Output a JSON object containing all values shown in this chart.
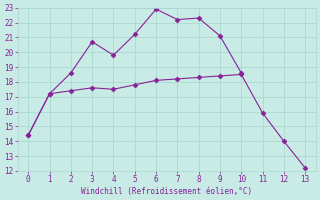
{
  "line1_x": [
    0,
    1,
    2,
    3,
    4,
    5,
    6,
    7,
    8,
    9,
    10
  ],
  "line1_y": [
    14.4,
    17.2,
    18.6,
    20.7,
    19.8,
    21.2,
    22.9,
    22.2,
    22.3,
    21.1,
    18.6
  ],
  "line2_x": [
    0,
    1,
    2,
    3,
    4,
    5,
    6,
    7,
    8,
    9,
    10,
    11,
    12,
    13
  ],
  "line2_y": [
    14.4,
    17.2,
    17.4,
    17.6,
    17.5,
    17.8,
    18.1,
    18.2,
    18.3,
    18.4,
    18.5,
    15.9,
    14.0,
    12.2
  ],
  "line_color": "#882299",
  "bg_color": "#c8ebe6",
  "grid_color": "#aad8d0",
  "xlabel": "Windchill (Refroidissement éolien,°C)",
  "xlabel_color": "#882299",
  "xlim_min": -0.5,
  "xlim_max": 13.5,
  "ylim_min": 12,
  "ylim_max": 23,
  "xticks": [
    0,
    1,
    2,
    3,
    4,
    5,
    6,
    7,
    8,
    9,
    10,
    11,
    12,
    13
  ],
  "yticks": [
    12,
    13,
    14,
    15,
    16,
    17,
    18,
    19,
    20,
    21,
    22,
    23
  ],
  "tick_color": "#882299",
  "marker": "D",
  "marker_size": 2.5,
  "line_width": 0.8
}
